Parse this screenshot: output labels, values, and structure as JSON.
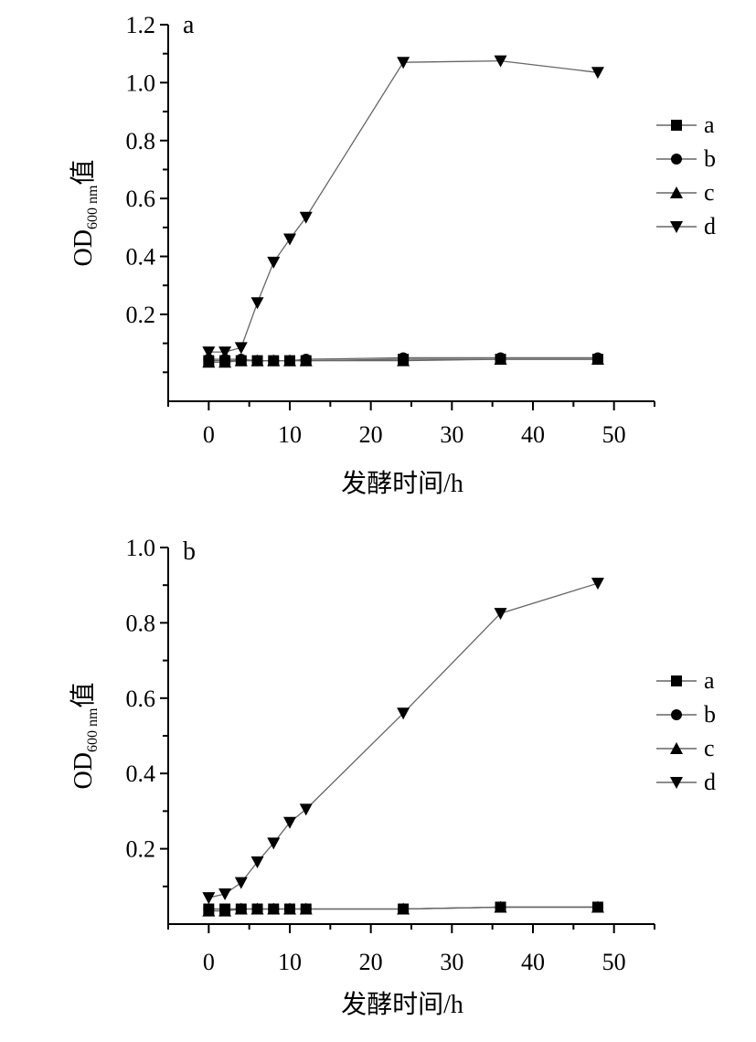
{
  "chart_data": [
    {
      "type": "line",
      "panel_label": "a",
      "xlabel": "发酵时间/h",
      "ylabel": {
        "main": "OD",
        "sub": "600 nm",
        "suffix": "值"
      },
      "xlim": [
        -5,
        55
      ],
      "ylim": [
        -0.1,
        1.2
      ],
      "xticks": [
        0,
        10,
        20,
        30,
        40,
        50
      ],
      "yticks": [
        0.2,
        0.4,
        0.6,
        0.8,
        1.0,
        1.2
      ],
      "ytick_labels": [
        "0.2",
        "0.4",
        "0.6",
        "0.8",
        "1.0",
        "1.2"
      ],
      "minor_yticks": [
        0.0,
        0.1,
        0.3,
        0.5,
        0.7,
        0.9,
        1.1
      ],
      "grid": false,
      "legend_position": "right",
      "series": [
        {
          "name": "a",
          "marker": "square",
          "x": [
            0,
            2,
            4,
            6,
            8,
            10,
            12,
            24,
            36,
            48
          ],
          "y": [
            0.04,
            0.04,
            0.04,
            0.04,
            0.04,
            0.04,
            0.04,
            0.045,
            0.045,
            0.045
          ]
        },
        {
          "name": "b",
          "marker": "circle",
          "x": [
            0,
            2,
            4,
            6,
            8,
            10,
            12,
            24,
            36,
            48
          ],
          "y": [
            0.045,
            0.045,
            0.045,
            0.04,
            0.04,
            0.04,
            0.045,
            0.05,
            0.05,
            0.05
          ]
        },
        {
          "name": "c",
          "marker": "triangle-up",
          "x": [
            0,
            2,
            4,
            6,
            8,
            10,
            12,
            24,
            36,
            48
          ],
          "y": [
            0.035,
            0.035,
            0.04,
            0.04,
            0.04,
            0.04,
            0.04,
            0.04,
            0.045,
            0.045
          ]
        },
        {
          "name": "d",
          "marker": "triangle-down",
          "x": [
            0,
            2,
            4,
            6,
            8,
            10,
            12,
            24,
            36,
            48
          ],
          "y": [
            0.07,
            0.07,
            0.085,
            0.24,
            0.38,
            0.46,
            0.535,
            1.07,
            1.075,
            1.035
          ]
        }
      ]
    },
    {
      "type": "line",
      "panel_label": "b",
      "xlabel": "发酵时间/h",
      "ylabel": {
        "main": "OD",
        "sub": "600 nm",
        "suffix": "值"
      },
      "xlim": [
        -5,
        55
      ],
      "ylim": [
        0.0,
        1.0
      ],
      "xticks": [
        0,
        10,
        20,
        30,
        40,
        50
      ],
      "yticks": [
        0.2,
        0.4,
        0.6,
        0.8,
        1.0
      ],
      "ytick_labels": [
        "0.2",
        "0.4",
        "0.6",
        "0.8",
        "1.0"
      ],
      "minor_yticks": [
        0.1,
        0.3,
        0.5,
        0.7,
        0.9
      ],
      "grid": false,
      "legend_position": "right",
      "series": [
        {
          "name": "a",
          "marker": "square",
          "x": [
            0,
            2,
            4,
            6,
            8,
            10,
            12,
            24,
            36,
            48
          ],
          "y": [
            0.04,
            0.04,
            0.04,
            0.04,
            0.04,
            0.04,
            0.04,
            0.04,
            0.045,
            0.045
          ]
        },
        {
          "name": "b",
          "marker": "circle",
          "x": [
            0,
            2,
            4,
            6,
            8,
            10,
            12,
            24,
            36,
            48
          ],
          "y": [
            0.04,
            0.04,
            0.04,
            0.04,
            0.04,
            0.04,
            0.04,
            0.04,
            0.045,
            0.045
          ]
        },
        {
          "name": "c",
          "marker": "triangle-up",
          "x": [
            0,
            2,
            4,
            6,
            8,
            10,
            12,
            24,
            36,
            48
          ],
          "y": [
            0.035,
            0.035,
            0.04,
            0.04,
            0.04,
            0.04,
            0.04,
            0.04,
            0.045,
            0.045
          ]
        },
        {
          "name": "d",
          "marker": "triangle-down",
          "x": [
            0,
            2,
            4,
            6,
            8,
            10,
            12,
            24,
            36,
            48
          ],
          "y": [
            0.07,
            0.08,
            0.11,
            0.165,
            0.215,
            0.27,
            0.305,
            0.56,
            0.825,
            0.905
          ]
        }
      ]
    }
  ]
}
